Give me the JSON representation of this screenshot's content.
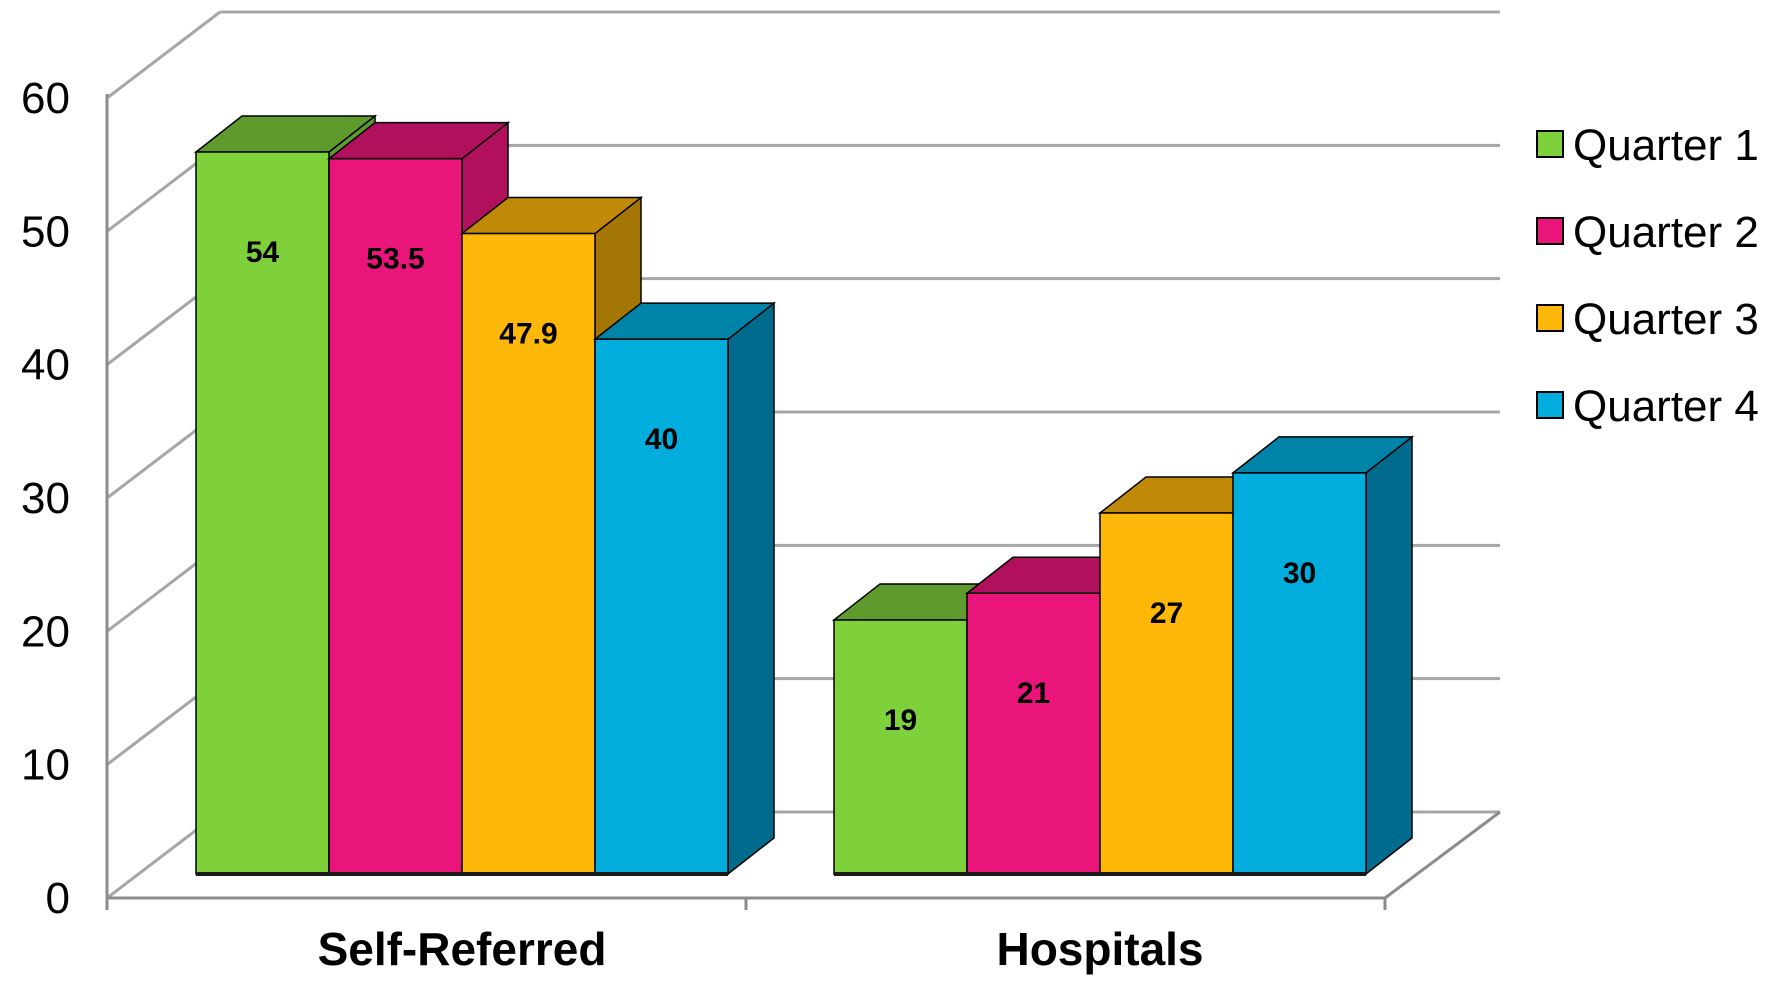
{
  "chart_data": {
    "type": "bar",
    "style": "3d-clustered-column",
    "categories": [
      "Self-Referred",
      "Hospitals"
    ],
    "series": [
      {
        "name": "Quarter 1",
        "values": [
          54,
          19
        ],
        "color": "#7fd13b",
        "top_color": "#5e9a2c",
        "side_color": "#5e9a2c"
      },
      {
        "name": "Quarter 2",
        "values": [
          53.5,
          21
        ],
        "color": "#ea157a",
        "top_color": "#b0105c",
        "side_color": "#b0105c"
      },
      {
        "name": "Quarter 3",
        "values": [
          47.9,
          27
        ],
        "color": "#feb80a",
        "top_color": "#c08a08",
        "side_color": "#a37605"
      },
      {
        "name": "Quarter 4",
        "values": [
          40,
          30
        ],
        "color": "#00addc",
        "top_color": "#0083a8",
        "side_color": "#006b8c"
      }
    ],
    "data_labels": [
      [
        "54",
        "19"
      ],
      [
        "53.5",
        "21"
      ],
      [
        "47.9",
        "27"
      ],
      [
        "40",
        "30"
      ]
    ],
    "ylim": [
      0,
      60
    ],
    "yticks": [
      "0",
      "10",
      "20",
      "30",
      "40",
      "50",
      "60"
    ],
    "grid": true,
    "legend_position": "right",
    "title": "",
    "xlabel": "",
    "ylabel": ""
  }
}
